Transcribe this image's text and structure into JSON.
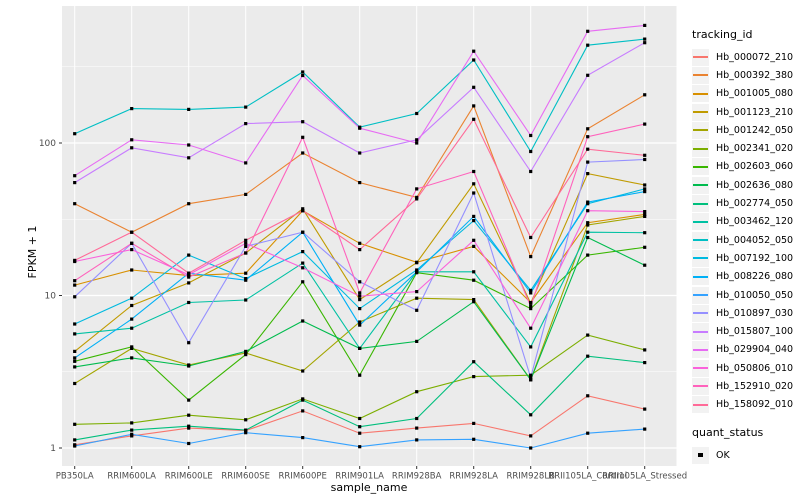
{
  "chart_data": {
    "type": "line",
    "title": "",
    "xlabel": "sample_name",
    "ylabel": "FPKM + 1",
    "y_scale": "log10",
    "y_ticks": [
      1,
      10,
      100
    ],
    "y_minor_ticks": [
      3.162,
      31.62,
      316.2
    ],
    "grid": "on",
    "legend_position": "right",
    "legend_title": "tracking_id",
    "point_marker": "black-square",
    "categories": [
      "PB350LA",
      "RRIM600LA",
      "RRIM600LE",
      "RRIM600SE",
      "RRIM600PE",
      "RRIM901LA",
      "RRIM928BA",
      "RRIM928LA",
      "RRIM928LB",
      "RRII105LA_Control",
      "RRII105LA_Stressed"
    ],
    "series": [
      {
        "name": "Hb_000072_210",
        "color": "#F8766D",
        "values": [
          1.05,
          1.2,
          1.35,
          1.3,
          1.75,
          1.25,
          1.35,
          1.45,
          1.2,
          2.2,
          1.8
        ]
      },
      {
        "name": "Hb_000392_380",
        "color": "#EA8331",
        "values": [
          40,
          26,
          40,
          46,
          86,
          55,
          44,
          175,
          18,
          124,
          207
        ]
      },
      {
        "name": "Hb_001005_080",
        "color": "#D89000",
        "values": [
          11.7,
          14.7,
          13.5,
          14,
          36,
          22,
          16.5,
          21,
          9,
          30,
          34
        ]
      },
      {
        "name": "Hb_001123_210",
        "color": "#C09B00",
        "values": [
          4.3,
          8.6,
          12.1,
          19,
          37,
          9.4,
          16.4,
          54,
          8.9,
          63,
          53
        ]
      },
      {
        "name": "Hb_001242_050",
        "color": "#A3A500",
        "values": [
          2.65,
          4.5,
          3.5,
          4.2,
          3.2,
          6.7,
          9.6,
          9.4,
          2.8,
          29,
          33
        ]
      },
      {
        "name": "Hb_002341_020",
        "color": "#7CAE00",
        "values": [
          1.43,
          1.46,
          1.64,
          1.53,
          2.1,
          1.56,
          2.34,
          2.94,
          3.0,
          5.5,
          4.4
        ]
      },
      {
        "name": "Hb_002603_060",
        "color": "#39B600",
        "values": [
          3.7,
          4.6,
          2.06,
          4.1,
          12.3,
          3.0,
          14.1,
          12.6,
          8.2,
          18.4,
          20.7
        ]
      },
      {
        "name": "Hb_002636_080",
        "color": "#00BB4E",
        "values": [
          3.4,
          3.9,
          3.45,
          4.3,
          6.8,
          4.5,
          5.0,
          9.1,
          2.8,
          24,
          15.8
        ]
      },
      {
        "name": "Hb_002774_050",
        "color": "#00BF7D",
        "values": [
          1.13,
          1.31,
          1.39,
          1.31,
          2.06,
          1.38,
          1.56,
          3.68,
          1.65,
          4.0,
          3.63
        ]
      },
      {
        "name": "Hb_003462_120",
        "color": "#00C1A3",
        "values": [
          5.6,
          6.1,
          9.0,
          9.35,
          16.3,
          4.5,
          14.3,
          14.3,
          4.6,
          26,
          25.8
        ]
      },
      {
        "name": "Hb_004052_050",
        "color": "#00BFC4",
        "values": [
          115,
          168,
          166,
          172,
          292,
          127,
          156,
          350,
          88,
          438,
          480
        ]
      },
      {
        "name": "Hb_007192_100",
        "color": "#00BAE0",
        "values": [
          6.5,
          9.6,
          18.4,
          12.9,
          19.4,
          8.2,
          14.7,
          31,
          10.8,
          40,
          50
        ]
      },
      {
        "name": "Hb_008226_080",
        "color": "#00B0F6",
        "values": [
          3.9,
          7.0,
          14.0,
          12.6,
          26,
          6.4,
          14.3,
          33,
          10.4,
          41,
          48
        ]
      },
      {
        "name": "Hb_010050_050",
        "color": "#35A2FF",
        "values": [
          1.03,
          1.23,
          1.07,
          1.26,
          1.17,
          1.02,
          1.13,
          1.14,
          1.0,
          1.25,
          1.33
        ]
      },
      {
        "name": "Hb_010897_030",
        "color": "#9590FF",
        "values": [
          9.8,
          22,
          4.9,
          21,
          26,
          12.3,
          8.0,
          47,
          2.9,
          75,
          78
        ]
      },
      {
        "name": "Hb_015807_100",
        "color": "#C77CFF",
        "values": [
          55,
          93,
          80,
          134,
          138,
          86,
          105,
          232,
          65,
          278,
          455
        ]
      },
      {
        "name": "Hb_029904_040",
        "color": "#E76BF3",
        "values": [
          61,
          105,
          97,
          74,
          277,
          125,
          100,
          400,
          112,
          540,
          590
        ]
      },
      {
        "name": "Hb_050806_010",
        "color": "#FA62DB",
        "values": [
          16.7,
          20,
          13.7,
          22,
          15.2,
          9.9,
          10.6,
          23,
          6.1,
          36,
          35.5
        ]
      },
      {
        "name": "Hb_152910_020",
        "color": "#FF62BC",
        "values": [
          12.5,
          22,
          13.2,
          19,
          109,
          10.4,
          50,
          65,
          8.5,
          110,
          133
        ]
      },
      {
        "name": "Hb_158092_010",
        "color": "#FF6A98",
        "values": [
          17,
          26,
          14,
          23,
          36,
          20,
          43,
          143,
          24,
          91,
          83
        ]
      }
    ],
    "quant_legend": {
      "title": "quant_status",
      "items": [
        {
          "label": "OK",
          "marker": "black-square"
        }
      ]
    }
  },
  "style": {
    "panel_bg": "#EBEBEB",
    "grid_color": "#FFFFFF",
    "tick_label_color": "#4D4D4D",
    "tick_mark_color": "#333333",
    "point_color": "#000000",
    "legend_key_bg": "#F2F2F2"
  }
}
